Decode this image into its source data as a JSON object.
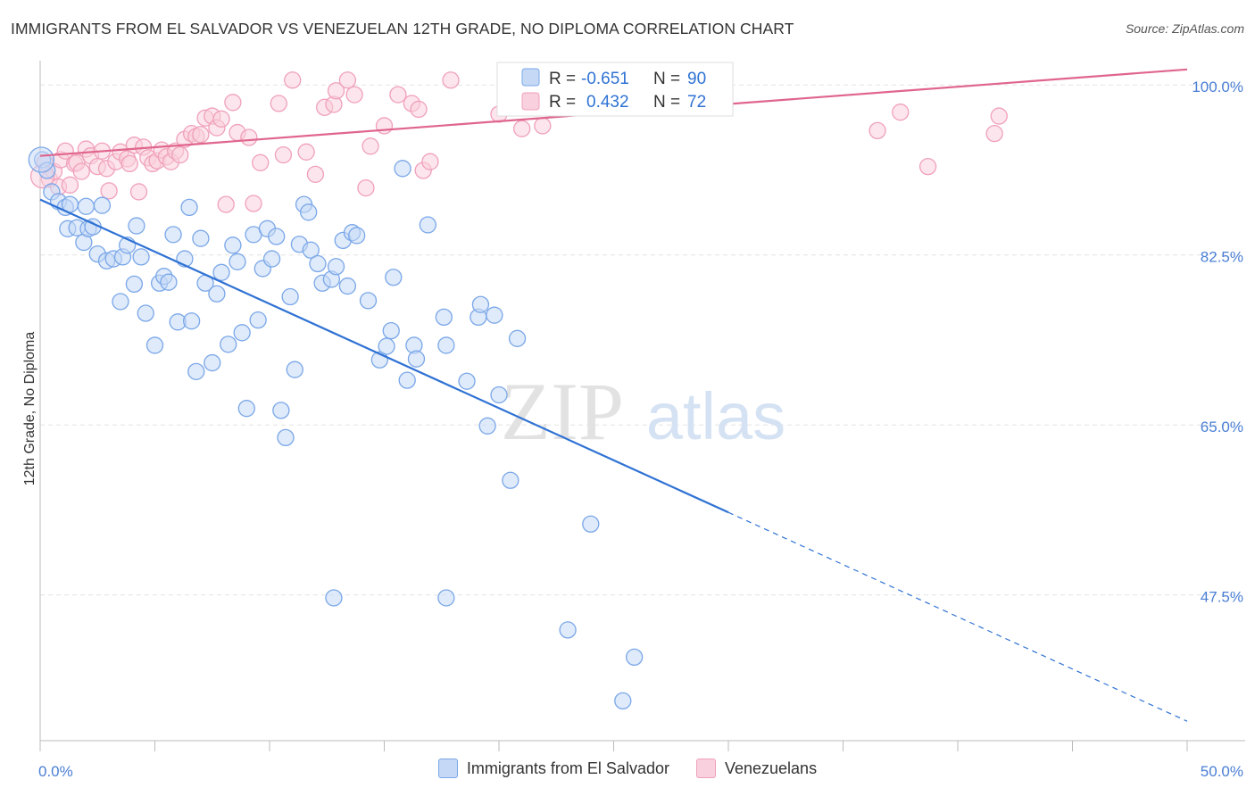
{
  "header": {
    "title": "IMMIGRANTS FROM EL SALVADOR VS VENEZUELAN 12TH GRADE, NO DIPLOMA CORRELATION CHART",
    "source": "Source: ZipAtlas.com"
  },
  "watermark": {
    "zip": "ZIP",
    "atlas": "atlas"
  },
  "chart_data": {
    "type": "scatter",
    "title": "IMMIGRANTS FROM EL SALVADOR VS VENEZUELAN 12TH GRADE, NO DIPLOMA CORRELATION CHART",
    "xlabel": "",
    "ylabel": "12th Grade, No Diploma",
    "xlim": [
      0,
      50
    ],
    "ylim": [
      32.5,
      102.5
    ],
    "x_tick_labels": {
      "left": "0.0%",
      "right": "50.0%"
    },
    "y_ticks": [
      {
        "value": 100.0,
        "label": "100.0%"
      },
      {
        "value": 82.5,
        "label": "82.5%"
      },
      {
        "value": 65.0,
        "label": "65.0%"
      },
      {
        "value": 47.5,
        "label": "47.5%"
      }
    ],
    "legend_stats": [
      {
        "r_label": "R =",
        "r_value": "-0.651",
        "n_label": "N =",
        "n_value": "90"
      },
      {
        "r_label": "R =",
        "r_value": "0.432",
        "n_label": "N =",
        "n_value": "72"
      }
    ],
    "series": [
      {
        "name": "Immigrants from El Salvador",
        "color": "#7aa7e8",
        "fill": "#c5d8f5",
        "trend": {
          "x0": 0,
          "y0": 88.2,
          "x1": 30,
          "y1": 56.0,
          "dash_to_x": 50,
          "dash_to_y": 34.5,
          "color": "#2f72d4"
        },
        "points": [
          [
            0.1,
            92.3
          ],
          [
            0.3,
            91.2
          ],
          [
            0.5,
            89.0
          ],
          [
            0.8,
            88.0
          ],
          [
            1.1,
            87.4
          ],
          [
            1.3,
            87.7
          ],
          [
            1.2,
            85.2
          ],
          [
            1.6,
            85.3
          ],
          [
            1.9,
            83.8
          ],
          [
            2.1,
            85.2
          ],
          [
            2.3,
            85.4
          ],
          [
            2.5,
            82.6
          ],
          [
            2.7,
            87.6
          ],
          [
            2.9,
            81.9
          ],
          [
            3.2,
            82.1
          ],
          [
            3.5,
            77.7
          ],
          [
            3.6,
            82.3
          ],
          [
            3.8,
            83.5
          ],
          [
            4.1,
            79.5
          ],
          [
            4.2,
            85.5
          ],
          [
            4.4,
            82.3
          ],
          [
            4.6,
            76.5
          ],
          [
            5.0,
            73.2
          ],
          [
            5.2,
            79.6
          ],
          [
            5.4,
            80.3
          ],
          [
            5.6,
            79.7
          ],
          [
            5.8,
            84.6
          ],
          [
            6.0,
            75.6
          ],
          [
            6.3,
            82.1
          ],
          [
            6.5,
            87.4
          ],
          [
            6.6,
            75.7
          ],
          [
            6.8,
            70.5
          ],
          [
            7.0,
            84.2
          ],
          [
            7.2,
            79.6
          ],
          [
            7.5,
            71.4
          ],
          [
            7.7,
            78.5
          ],
          [
            7.9,
            80.7
          ],
          [
            8.2,
            73.3
          ],
          [
            8.4,
            83.5
          ],
          [
            8.6,
            81.8
          ],
          [
            8.8,
            74.5
          ],
          [
            9.0,
            66.7
          ],
          [
            9.3,
            84.6
          ],
          [
            9.5,
            75.8
          ],
          [
            9.7,
            81.1
          ],
          [
            9.9,
            85.2
          ],
          [
            10.1,
            82.1
          ],
          [
            10.3,
            84.4
          ],
          [
            10.5,
            66.5
          ],
          [
            10.7,
            63.7
          ],
          [
            10.9,
            78.2
          ],
          [
            11.1,
            70.7
          ],
          [
            11.3,
            83.6
          ],
          [
            11.5,
            87.7
          ],
          [
            11.7,
            86.9
          ],
          [
            11.8,
            83.0
          ],
          [
            12.1,
            81.6
          ],
          [
            12.3,
            79.6
          ],
          [
            12.7,
            80.0
          ],
          [
            12.9,
            81.3
          ],
          [
            13.2,
            84.0
          ],
          [
            13.4,
            79.3
          ],
          [
            13.6,
            84.8
          ],
          [
            13.8,
            84.5
          ],
          [
            14.3,
            77.8
          ],
          [
            14.8,
            71.7
          ],
          [
            15.1,
            73.1
          ],
          [
            15.3,
            74.7
          ],
          [
            15.4,
            80.2
          ],
          [
            15.8,
            91.4
          ],
          [
            16.0,
            69.6
          ],
          [
            16.3,
            73.2
          ],
          [
            16.4,
            71.8
          ],
          [
            16.9,
            85.6
          ],
          [
            17.6,
            76.1
          ],
          [
            17.7,
            73.2
          ],
          [
            18.6,
            69.5
          ],
          [
            19.1,
            76.1
          ],
          [
            19.2,
            77.4
          ],
          [
            19.5,
            64.9
          ],
          [
            19.8,
            76.3
          ],
          [
            20.0,
            68.1
          ],
          [
            20.5,
            59.3
          ],
          [
            20.8,
            73.9
          ],
          [
            12.8,
            47.2
          ],
          [
            17.7,
            47.2
          ],
          [
            23.0,
            43.9
          ],
          [
            24.0,
            54.8
          ],
          [
            25.4,
            36.6
          ],
          [
            25.9,
            41.1
          ],
          [
            2.0,
            87.5
          ]
        ]
      },
      {
        "name": "Venezuelans",
        "color": "#f0a0bb",
        "fill": "#f9d0dd",
        "trend": {
          "x0": 0,
          "y0": 92.7,
          "x1": 50,
          "y1": 101.6,
          "color": "#e0658d"
        },
        "points": [
          [
            0.2,
            92.0
          ],
          [
            0.4,
            90.3
          ],
          [
            0.6,
            91.1
          ],
          [
            0.8,
            89.5
          ],
          [
            0.9,
            92.3
          ],
          [
            1.1,
            93.2
          ],
          [
            1.3,
            89.7
          ],
          [
            1.5,
            91.9
          ],
          [
            1.6,
            92.0
          ],
          [
            1.8,
            91.1
          ],
          [
            2.0,
            93.4
          ],
          [
            2.2,
            92.7
          ],
          [
            2.5,
            91.6
          ],
          [
            2.7,
            93.2
          ],
          [
            2.9,
            91.4
          ],
          [
            3.0,
            89.1
          ],
          [
            3.3,
            92.1
          ],
          [
            3.5,
            93.1
          ],
          [
            3.8,
            92.4
          ],
          [
            3.9,
            91.9
          ],
          [
            4.1,
            93.8
          ],
          [
            4.3,
            89.0
          ],
          [
            4.5,
            93.6
          ],
          [
            4.7,
            92.5
          ],
          [
            4.9,
            91.9
          ],
          [
            5.1,
            92.2
          ],
          [
            5.3,
            93.3
          ],
          [
            5.5,
            92.6
          ],
          [
            5.7,
            92.1
          ],
          [
            5.9,
            93.2
          ],
          [
            6.1,
            92.8
          ],
          [
            6.3,
            94.4
          ],
          [
            6.6,
            95.0
          ],
          [
            6.8,
            94.7
          ],
          [
            7.0,
            94.9
          ],
          [
            7.2,
            96.6
          ],
          [
            7.5,
            96.8
          ],
          [
            7.7,
            95.6
          ],
          [
            7.9,
            96.5
          ],
          [
            8.1,
            87.7
          ],
          [
            8.4,
            98.2
          ],
          [
            8.6,
            95.1
          ],
          [
            9.1,
            94.6
          ],
          [
            9.3,
            87.8
          ],
          [
            9.6,
            92.0
          ],
          [
            10.4,
            98.1
          ],
          [
            10.6,
            92.8
          ],
          [
            11.0,
            100.5
          ],
          [
            11.6,
            93.1
          ],
          [
            12.0,
            90.8
          ],
          [
            12.4,
            97.7
          ],
          [
            12.8,
            98.0
          ],
          [
            12.9,
            99.4
          ],
          [
            13.4,
            100.5
          ],
          [
            13.7,
            99.0
          ],
          [
            14.2,
            89.4
          ],
          [
            14.4,
            93.7
          ],
          [
            15.0,
            95.8
          ],
          [
            15.6,
            99.0
          ],
          [
            16.2,
            98.1
          ],
          [
            16.5,
            97.5
          ],
          [
            16.7,
            91.2
          ],
          [
            17.0,
            92.1
          ],
          [
            17.9,
            100.5
          ],
          [
            20.0,
            97.0
          ],
          [
            21.0,
            95.5
          ],
          [
            21.9,
            95.8
          ],
          [
            36.5,
            95.3
          ],
          [
            37.5,
            97.2
          ],
          [
            38.7,
            91.6
          ],
          [
            41.6,
            95.0
          ],
          [
            41.8,
            96.8
          ]
        ]
      }
    ]
  },
  "legend": {
    "series1_label": "Immigrants from El Salvador",
    "series2_label": "Venezuelans"
  }
}
